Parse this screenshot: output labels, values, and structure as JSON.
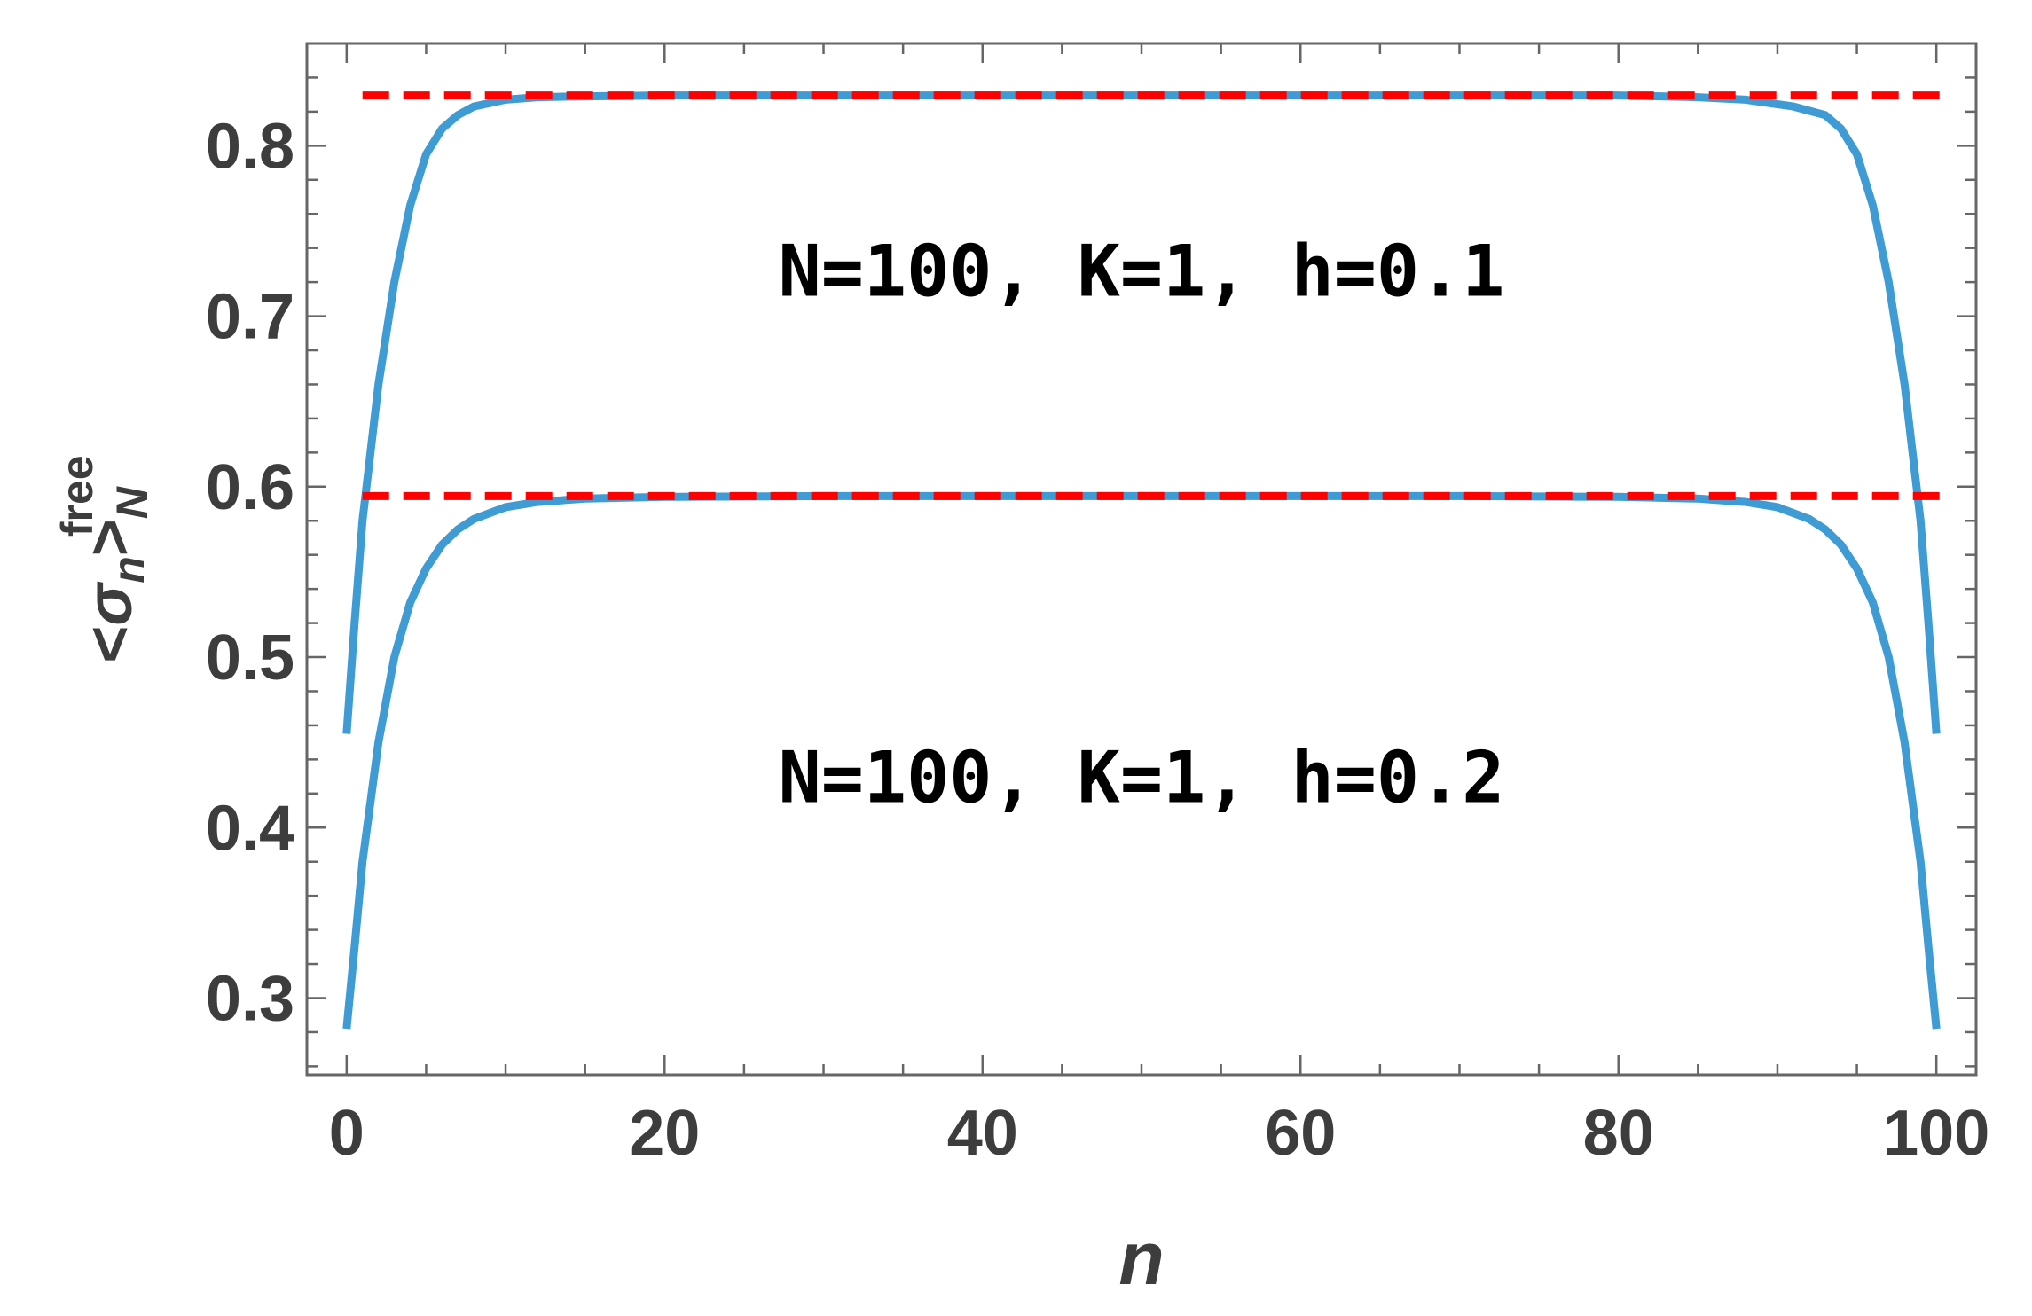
{
  "chart_data": {
    "type": "line",
    "xlabel": "n",
    "ylabel": {
      "open": "<",
      "symbol": "σ",
      "subscript": "n",
      "close": ">",
      "post_subscript": "N",
      "superscript": "free"
    },
    "xlim": [
      -2.5,
      102.5
    ],
    "ylim": [
      0.255,
      0.86
    ],
    "x_ticks": [
      0,
      20,
      40,
      60,
      80,
      100
    ],
    "x_tick_labels": [
      "0",
      "20",
      "40",
      "60",
      "80",
      "100"
    ],
    "y_ticks": [
      0.3,
      0.4,
      0.5,
      0.6,
      0.7,
      0.8
    ],
    "y_tick_labels": [
      "0.3",
      "0.4",
      "0.5",
      "0.6",
      "0.7",
      "0.8"
    ],
    "x_minor_step": 5,
    "y_minor_step": 0.02,
    "grid": false,
    "series": [
      {
        "x": [
          0,
          0.5,
          1,
          2,
          3,
          4,
          5,
          6,
          7,
          8,
          10,
          12,
          15,
          20,
          30,
          50,
          70,
          80,
          85,
          88,
          91,
          93,
          94,
          95,
          96,
          97,
          98,
          99,
          99.5,
          100
        ],
        "values": [
          0.455,
          0.52,
          0.58,
          0.66,
          0.72,
          0.765,
          0.795,
          0.81,
          0.818,
          0.823,
          0.827,
          0.8285,
          0.829,
          0.8295,
          0.8295,
          0.8295,
          0.8295,
          0.8295,
          0.8285,
          0.827,
          0.823,
          0.818,
          0.81,
          0.795,
          0.765,
          0.72,
          0.66,
          0.58,
          0.52,
          0.455
        ],
        "color": "#3e9bd3",
        "style": "solid"
      },
      {
        "x": [
          0,
          0.5,
          1,
          2,
          3,
          4,
          5,
          6,
          7,
          8,
          10,
          12,
          15,
          20,
          30,
          50,
          70,
          80,
          85,
          88,
          90,
          92,
          93,
          94,
          95,
          96,
          97,
          98,
          99,
          99.5,
          100
        ],
        "values": [
          0.282,
          0.33,
          0.38,
          0.45,
          0.5,
          0.532,
          0.552,
          0.566,
          0.575,
          0.581,
          0.588,
          0.591,
          0.593,
          0.594,
          0.5945,
          0.5945,
          0.5945,
          0.594,
          0.593,
          0.591,
          0.588,
          0.581,
          0.575,
          0.566,
          0.552,
          0.532,
          0.5,
          0.45,
          0.38,
          0.33,
          0.282
        ],
        "color": "#3e9bd3",
        "style": "solid"
      },
      {
        "x": [
          1,
          101
        ],
        "values": [
          0.8295,
          0.8295
        ],
        "color": "#ff0000",
        "style": "dashed"
      },
      {
        "x": [
          1,
          101
        ],
        "values": [
          0.5945,
          0.5945
        ],
        "color": "#ff0000",
        "style": "dashed"
      }
    ],
    "annotations": [
      {
        "text": "N=100, K=1, h=0.1",
        "x": 50,
        "y": 0.712
      },
      {
        "text": "N=100, K=1, h=0.2",
        "x": 50,
        "y": 0.415
      }
    ]
  }
}
